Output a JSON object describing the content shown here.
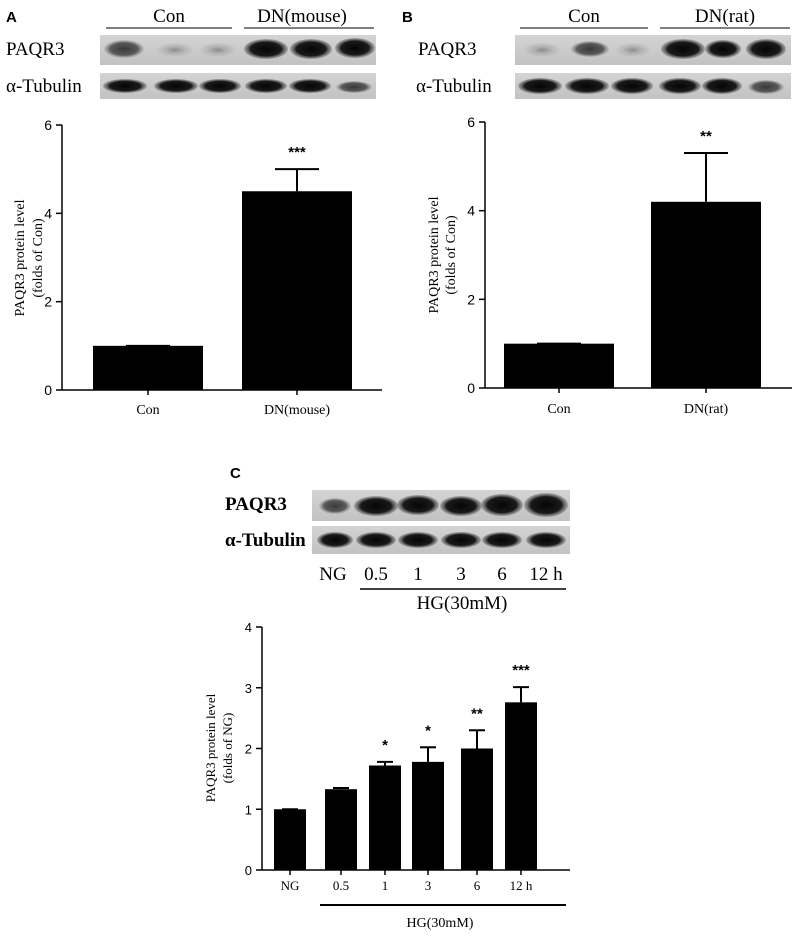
{
  "panels": {
    "A": {
      "letter": "A",
      "blot": {
        "group_labels": [
          "Con",
          "DN(mouse)"
        ],
        "rows": [
          "PAQR3",
          "α-Tubulin"
        ]
      }
    },
    "B": {
      "letter": "B",
      "blot": {
        "group_labels": [
          "Con",
          "DN(rat)"
        ],
        "rows": [
          "PAQR3",
          "α-Tubulin"
        ]
      }
    },
    "C": {
      "letter": "C",
      "blot": {
        "rows": [
          "PAQR3",
          "α-Tubulin"
        ],
        "lanes": [
          "NG",
          "0.5",
          "1",
          "3",
          "6",
          "12 h"
        ],
        "group_label": "HG(30mM)"
      }
    }
  },
  "chart_data": [
    {
      "id": "A",
      "type": "bar",
      "categories": [
        "Con",
        "DN(mouse)"
      ],
      "values": [
        1.0,
        4.5
      ],
      "errors": [
        0.0,
        0.5
      ],
      "significance": [
        "",
        "***"
      ],
      "ylabel": "PAQR3 protein level\n(folds of Con)",
      "ylabel_lines": [
        "PAQR3 protein level",
        "(folds of Con)"
      ],
      "ylim": [
        0,
        6
      ],
      "yticks": [
        "0",
        "2",
        "4",
        "6"
      ],
      "bar_color": "#000000"
    },
    {
      "id": "B",
      "type": "bar",
      "categories": [
        "Con",
        "DN(rat)"
      ],
      "values": [
        1.0,
        4.2
      ],
      "errors": [
        0.0,
        1.1
      ],
      "significance": [
        "",
        "**"
      ],
      "ylabel_lines": [
        "PAQR3 protein level",
        "(folds of Con)"
      ],
      "ylim": [
        0,
        6
      ],
      "yticks": [
        "0",
        "2",
        "4",
        "6"
      ],
      "bar_color": "#000000"
    },
    {
      "id": "C",
      "type": "bar",
      "categories": [
        "NG",
        "0.5",
        "1",
        "3",
        "6",
        "12 h"
      ],
      "values": [
        1.0,
        1.33,
        1.72,
        1.78,
        2.0,
        2.76
      ],
      "errors": [
        0.0,
        0.02,
        0.06,
        0.24,
        0.3,
        0.25
      ],
      "significance": [
        "",
        "",
        "*",
        "*",
        "**",
        "***"
      ],
      "ylabel_lines": [
        "PAQR3 protein level",
        "(folds of NG)"
      ],
      "ylim": [
        0,
        4
      ],
      "yticks": [
        "0",
        "1",
        "2",
        "3",
        "4"
      ],
      "group_label": "HG(30mM)",
      "bar_color": "#000000"
    }
  ]
}
